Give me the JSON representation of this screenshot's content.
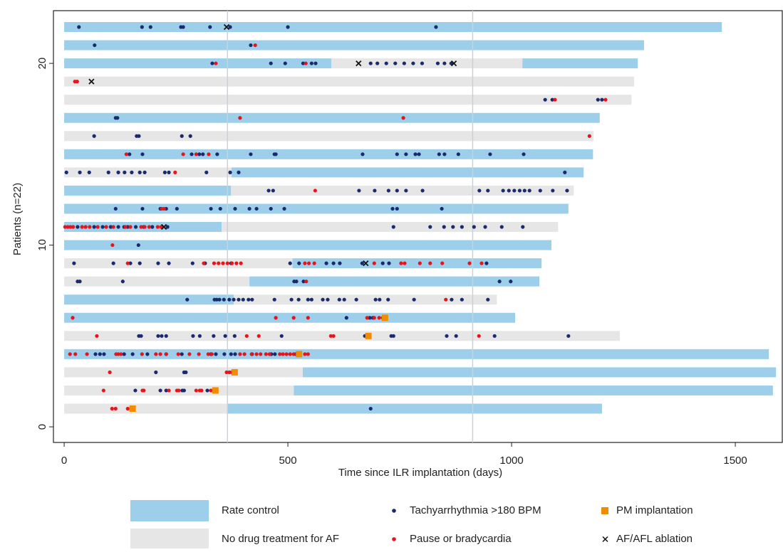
{
  "chart_data": {
    "type": "swimmer",
    "xlabel": "Time since ILR implantation (days)",
    "ylabel": "Patients (n=22)",
    "xlim": [
      -24,
      1605
    ],
    "ylim": [
      -0.86,
      22.9
    ],
    "xticks": [
      0,
      500,
      1000,
      1500
    ],
    "yticks": [
      0,
      10,
      20
    ],
    "reference_lines": [
      365,
      913
    ],
    "series": [
      {
        "name": "Rate control",
        "color": "#9dcfea",
        "marker": "bar",
        "segments": [
          {
            "y": 22,
            "start": 0,
            "end": 1470
          },
          {
            "y": 21,
            "start": 0,
            "end": 1296
          },
          {
            "y": 20,
            "start": 0,
            "end": 597
          },
          {
            "y": 20,
            "start": 1024,
            "end": 1282
          },
          {
            "y": 17,
            "start": 0,
            "end": 1197
          },
          {
            "y": 15,
            "start": 0,
            "end": 1182
          },
          {
            "y": 14,
            "start": 374,
            "end": 1161
          },
          {
            "y": 13,
            "start": 0,
            "end": 373
          },
          {
            "y": 12,
            "start": 0,
            "end": 1127
          },
          {
            "y": 11,
            "start": 0,
            "end": 352
          },
          {
            "y": 10,
            "start": 0,
            "end": 1089
          },
          {
            "y": 9,
            "start": 510,
            "end": 1067
          },
          {
            "y": 8,
            "start": 414,
            "end": 1062
          },
          {
            "y": 7,
            "start": 0,
            "end": 379
          },
          {
            "y": 6,
            "start": 0,
            "end": 1008
          },
          {
            "y": 4,
            "start": 0,
            "end": 1575
          },
          {
            "y": 3,
            "start": 533,
            "end": 1591
          },
          {
            "y": 2,
            "start": 513,
            "end": 1584
          },
          {
            "y": 1,
            "start": 365,
            "end": 1202
          }
        ]
      },
      {
        "name": "No drug treatment for AF",
        "color": "#e6e6e6",
        "marker": "bar",
        "segments": [
          {
            "y": 20,
            "start": 597,
            "end": 1024
          },
          {
            "y": 19,
            "start": 0,
            "end": 1274
          },
          {
            "y": 18,
            "start": 0,
            "end": 1268
          },
          {
            "y": 16,
            "start": 0,
            "end": 1183
          },
          {
            "y": 14,
            "start": 0,
            "end": 374
          },
          {
            "y": 13,
            "start": 373,
            "end": 1139
          },
          {
            "y": 11,
            "start": 352,
            "end": 1104
          },
          {
            "y": 9,
            "start": 0,
            "end": 510
          },
          {
            "y": 8,
            "start": 0,
            "end": 414
          },
          {
            "y": 7,
            "start": 379,
            "end": 967
          },
          {
            "y": 5,
            "start": 0,
            "end": 1242
          },
          {
            "y": 3,
            "start": 0,
            "end": 533
          },
          {
            "y": 2,
            "start": 0,
            "end": 513
          },
          {
            "y": 1,
            "start": 0,
            "end": 365
          }
        ]
      },
      {
        "name": "Tachyarrhythmia >180 BPM",
        "color": "#1a2a6c",
        "marker": "dot",
        "groups": [
          {
            "y": 22,
            "x": [
              33,
              174,
              193,
              261,
              266,
              326,
              371,
              500,
              831
            ]
          },
          {
            "y": 21,
            "x": [
              68,
              417
            ]
          },
          {
            "y": 20,
            "x": [
              331,
              462,
              494,
              534,
              553,
              562,
              685,
              700,
              720,
              740,
              760,
              780,
              800,
              835,
              850,
              865
            ]
          },
          {
            "y": 18,
            "x": [
              1075,
              1091,
              1193,
              1202
            ]
          },
          {
            "y": 17,
            "x": [
              115,
              119
            ]
          },
          {
            "y": 16,
            "x": [
              67,
              162,
              167,
              263,
              282
            ]
          },
          {
            "y": 15,
            "x": [
              146,
              175,
              285,
              302,
              310,
              342,
              417,
              470,
              473,
              667,
              744,
              764,
              785,
              793,
              838,
              850,
              881,
              952,
              1027
            ]
          },
          {
            "y": 14,
            "x": [
              5,
              35,
              56,
              99,
              121,
              135,
              151,
              169,
              180,
              225,
              234,
              318,
              371,
              390,
              1119
            ]
          },
          {
            "y": 13,
            "x": [
              457,
              467,
              659,
              694,
              725,
              744,
              764,
              801,
              928,
              947,
              981,
              994,
              1006,
              1018,
              1029,
              1040,
              1064,
              1092,
              1124
            ]
          },
          {
            "y": 12,
            "x": [
              115,
              175,
              215,
              228,
              252,
              328,
              349,
              382,
              414,
              430,
              462,
              492,
              734,
              744,
              844
            ]
          },
          {
            "y": 11,
            "x": [
              30,
              67,
              86,
              104,
              121,
              134,
              142,
              160,
              178,
              197,
              231,
              736,
              818,
              849,
              869,
              889,
              916,
              941,
              978,
              1025
            ]
          },
          {
            "y": 10,
            "x": [
              166
            ]
          },
          {
            "y": 9,
            "x": [
              22,
              110,
              148,
              169,
              210,
              234,
              287,
              315,
              373,
              505,
              525,
              586,
              602,
              616,
              666,
              712,
              726,
              944
            ]
          },
          {
            "y": 8,
            "x": [
              30,
              35,
              131,
              514,
              519,
              535,
              973,
              998
            ]
          },
          {
            "y": 7,
            "x": [
              275,
              336,
              341,
              347,
              357,
              369,
              379,
              390,
              400,
              412,
              420,
              470,
              508,
              524,
              545,
              553,
              578,
              589,
              615,
              626,
              653,
              696,
              705,
              724,
              782,
              866,
              889,
              947
            ]
          },
          {
            "y": 6,
            "x": [
              631,
              683,
              690
            ]
          },
          {
            "y": 5,
            "x": [
              167,
              172,
              210,
              218,
              228,
              288,
              303,
              334,
              360,
              381,
              486,
              672,
              731,
              736,
              855,
              876,
              962,
              1127
            ]
          },
          {
            "y": 4,
            "x": [
              70,
              80,
              89,
              134,
              153,
              186,
              228,
              263,
              328,
              339,
              358,
              373,
              382,
              420,
              463,
              471,
              518
            ]
          },
          {
            "y": 3,
            "x": [
              205,
              268,
              272
            ]
          },
          {
            "y": 2,
            "x": [
              159,
              215,
              228,
              264,
              268,
              320
            ]
          },
          {
            "y": 1,
            "x": [
              685
            ]
          }
        ]
      },
      {
        "name": "Pause or bradycardia",
        "color": "#e8141c",
        "marker": "dot",
        "groups": [
          {
            "y": 21,
            "x": [
              427
            ]
          },
          {
            "y": 20,
            "x": [
              339,
              540
            ]
          },
          {
            "y": 19,
            "x": [
              24,
              29
            ]
          },
          {
            "y": 18,
            "x": [
              1097,
              1210
            ]
          },
          {
            "y": 17,
            "x": [
              393,
              758
            ]
          },
          {
            "y": 16,
            "x": [
              1174
            ]
          },
          {
            "y": 15,
            "x": [
              139,
              266,
              295,
              323
            ]
          },
          {
            "y": 14,
            "x": [
              248
            ]
          },
          {
            "y": 13,
            "x": [
              561
            ]
          },
          {
            "y": 12,
            "x": [
              218,
              223
            ]
          },
          {
            "y": 11,
            "x": [
              2,
              8,
              14,
              20,
              40,
              48,
              57,
              75,
              94,
              110,
              137,
              148,
              172,
              180,
              190,
              209,
              217
            ]
          },
          {
            "y": 10,
            "x": [
              108
            ]
          },
          {
            "y": 9,
            "x": [
              142,
              312,
              335,
              345,
              355,
              365,
              375,
              385,
              395,
              538,
              547,
              559,
              693,
              753,
              761,
              795,
              818,
              845,
              906,
              933
            ]
          },
          {
            "y": 8,
            "x": [
              541
            ]
          },
          {
            "y": 7,
            "x": [
              853
            ]
          },
          {
            "y": 6,
            "x": [
              19,
              473,
              513,
              545,
              677,
              693,
              704,
              712
            ]
          },
          {
            "y": 5,
            "x": [
              73,
              408,
              435,
              596,
              602,
              927
            ]
          },
          {
            "y": 4,
            "x": [
              13,
              25,
              51,
              116,
              121,
              127,
              174,
              205,
              215,
              228,
              255,
              280,
              301,
              322,
              330,
              393,
              403,
              419,
              430,
              439,
              451,
              459,
              482,
              489,
              497,
              505,
              513,
              521,
              525,
              538,
              545
            ]
          },
          {
            "y": 3,
            "x": [
              102,
              363,
              369,
              374,
              381
            ]
          },
          {
            "y": 2,
            "x": [
              88,
              175,
              178,
              234,
              252,
              256,
              295,
              303,
              307,
              328
            ]
          },
          {
            "y": 1,
            "x": [
              107,
              115,
              142
            ]
          }
        ]
      },
      {
        "name": "PM implantation",
        "color": "#f08c00",
        "marker": "square",
        "groups": [
          {
            "y": 1,
            "x": [
              153
            ]
          },
          {
            "y": 2,
            "x": [
              338
            ]
          },
          {
            "y": 3,
            "x": [
              381
            ]
          },
          {
            "y": 4,
            "x": [
              525
            ]
          },
          {
            "y": 5,
            "x": [
              680
            ]
          },
          {
            "y": 6,
            "x": [
              717
            ]
          }
        ]
      },
      {
        "name": "AF/AFL ablation",
        "color": "#111111",
        "marker": "cross",
        "groups": [
          {
            "y": 22,
            "x": [
              363
            ]
          },
          {
            "y": 20,
            "x": [
              658,
              871
            ]
          },
          {
            "y": 19,
            "x": [
              61
            ]
          },
          {
            "y": 11,
            "x": [
              223
            ]
          },
          {
            "y": 9,
            "x": [
              674
            ]
          }
        ]
      }
    ]
  }
}
